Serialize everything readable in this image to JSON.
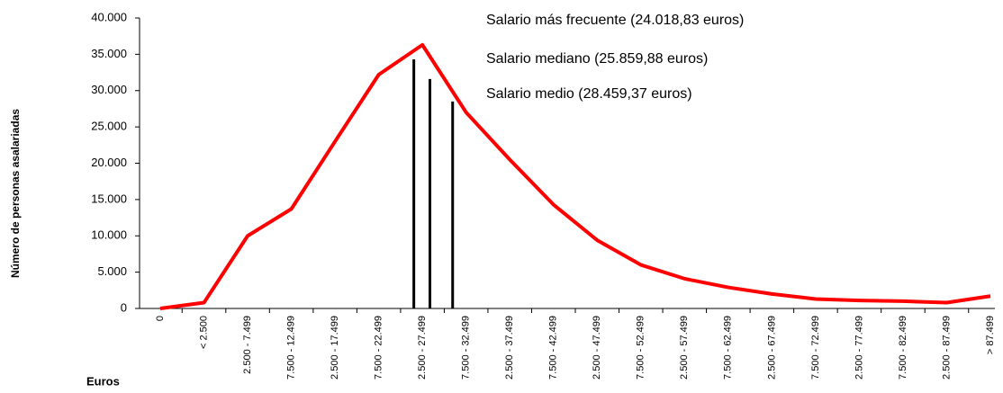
{
  "chart_data": {
    "type": "line",
    "ylabel": "Número de personas asalariadas",
    "xlabel": "Euros",
    "categories": [
      "0",
      "< 2.500",
      "2.500 - 7.499",
      "7.500 - 12.499",
      "2.500 - 17.499",
      "7.500 - 22.499",
      "2.500 - 27.499",
      "7.500 - 32.499",
      "2.500 - 37.499",
      "7.500 - 42.499",
      "2.500 - 47.499",
      "7.500 - 52.499",
      "2.500 - 57.499",
      "7.500 - 62.499",
      "2.500 - 67.499",
      "7.500 - 72.499",
      "2.500 - 77.499",
      "7.500 - 82.499",
      "2.500 - 87.499",
      "> 87.499"
    ],
    "values": [
      0,
      800,
      10000,
      13700,
      23000,
      32200,
      36300,
      27000,
      20500,
      14300,
      9400,
      6000,
      4100,
      2900,
      2000,
      1300,
      1100,
      1000,
      800,
      1700
    ],
    "color": "#ff0000",
    "ylim": [
      0,
      40000
    ],
    "yticks": [
      0,
      {
        "value": 5000,
        "label": "5.000"
      },
      {
        "value": 10000,
        "label": "10.000"
      },
      {
        "value": 15000,
        "label": "15.000"
      },
      {
        "value": 20000,
        "label": "20.000"
      },
      {
        "value": 25000,
        "label": "25.000"
      },
      {
        "value": 30000,
        "label": "30.000"
      },
      {
        "value": 35000,
        "label": "35.000"
      },
      {
        "value": 40000,
        "label": "40.000"
      }
    ],
    "reference_lines": [
      {
        "label": "Salario más frecuente (24.018,83 euros)",
        "x": 24018.83,
        "value": 34300
      },
      {
        "label": "Salario mediano (25.859,88 euros)",
        "x": 25859.88,
        "value": 31600
      },
      {
        "label": "Salario medio (28.459,37 euros)",
        "x": 28459.37,
        "value": 28500
      }
    ],
    "reference_color": "#000000"
  }
}
